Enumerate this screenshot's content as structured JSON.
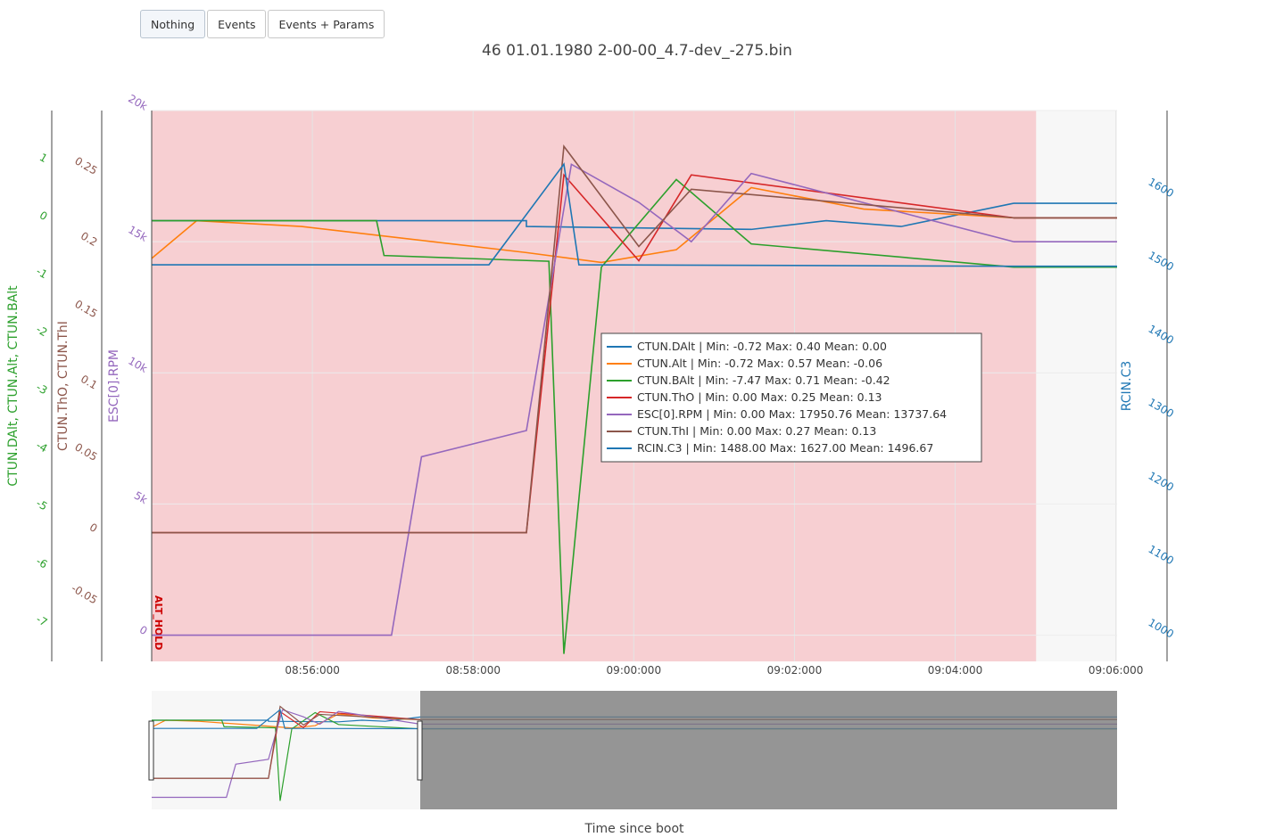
{
  "toolbar": {
    "buttons": [
      {
        "label": "Nothing",
        "active": true
      },
      {
        "label": "Events",
        "active": false
      },
      {
        "label": "Events + Params",
        "active": false
      }
    ]
  },
  "chart_data": {
    "type": "line",
    "title": "46 01.01.1980 2-00-00_4.7-dev_-275.bin",
    "xlabel": "Time since boot",
    "x_ticks": [
      "08:56:000",
      "08:58:000",
      "09:00:000",
      "09:02:000",
      "09:04:000",
      "09:06:000"
    ],
    "x_range": [
      "08:54:020",
      "09:06:880"
    ],
    "mode_band": {
      "label": "ALT_HOLD",
      "start": "08:54:020",
      "end": "09:05:420",
      "color": "#f7cfd2"
    },
    "axes": {
      "y_left_outer": {
        "title": "CTUN.DAlt, CTUN.Alt, CTUN.BAlt",
        "color": "#2ca02c",
        "range": [
          -7.6,
          1.9
        ],
        "ticks": [
          1,
          0,
          -1,
          -2,
          -3,
          -4,
          -5,
          -6,
          -7
        ]
      },
      "y_left_mid": {
        "title": "CTUN.ThO, CTUN.ThI",
        "color": "#8c564b",
        "range": [
          -0.09,
          0.295
        ],
        "ticks": [
          0.25,
          0.2,
          0.15,
          0.1,
          0.05,
          0,
          -0.05
        ]
      },
      "y_left_inner": {
        "title": "ESC[0].RPM",
        "color": "#9467bd",
        "range": [
          -1000,
          20000
        ],
        "ticks": [
          {
            "v": 20000,
            "label": "20k"
          },
          {
            "v": 15000,
            "label": "15k"
          },
          {
            "v": 10000,
            "label": "10k"
          },
          {
            "v": 5000,
            "label": "5k"
          },
          {
            "v": 0,
            "label": "0"
          }
        ]
      },
      "y_right": {
        "title": "RCIN.C3",
        "color": "#1f77b4",
        "range": [
          950,
          1700
        ],
        "ticks": [
          1600,
          1500,
          1400,
          1300,
          1200,
          1100,
          1000
        ]
      }
    },
    "series": [
      {
        "name": "CTUN.DAlt",
        "color": "#1f77b4",
        "axis": "y_left_outer",
        "min": -0.72,
        "max": 0.4,
        "mean": 0.0,
        "legend": "CTUN.DAlt | Min: -0.72     Max: 0.40     Mean: 0.00",
        "points": [
          [
            0,
            0
          ],
          [
            5,
            0
          ],
          [
            5,
            -0.1
          ],
          [
            8,
            -0.15
          ],
          [
            9,
            0
          ],
          [
            10,
            -0.1
          ],
          [
            11.5,
            0.3
          ]
        ]
      },
      {
        "name": "CTUN.Alt",
        "color": "#ff7f0e",
        "axis": "y_left_outer",
        "min": -0.72,
        "max": 0.57,
        "mean": -0.06,
        "legend": "CTUN.Alt | Min: -0.72     Max: 0.57     Mean: -0.06",
        "points": [
          [
            0,
            -0.65
          ],
          [
            0.6,
            0.0
          ],
          [
            2,
            -0.1
          ],
          [
            5,
            -0.55
          ],
          [
            6,
            -0.72
          ],
          [
            7,
            -0.5
          ],
          [
            8,
            0.57
          ],
          [
            9.5,
            0.2
          ],
          [
            11.5,
            0.05
          ]
        ]
      },
      {
        "name": "CTUN.BAlt",
        "color": "#2ca02c",
        "axis": "y_left_outer",
        "min": -7.47,
        "max": 0.71,
        "mean": -0.42,
        "legend": "CTUN.BAlt | Min: -7.47     Max: 0.71     Mean: -0.42",
        "points": [
          [
            0,
            0
          ],
          [
            3,
            0
          ],
          [
            3.1,
            -0.6
          ],
          [
            5.3,
            -0.7
          ],
          [
            5.5,
            -7.47
          ],
          [
            6,
            -0.8
          ],
          [
            7,
            0.71
          ],
          [
            8,
            -0.4
          ],
          [
            11.5,
            -0.8
          ]
        ]
      },
      {
        "name": "CTUN.ThO",
        "color": "#d62728",
        "axis": "y_left_mid",
        "min": 0.0,
        "max": 0.25,
        "mean": 0.13,
        "legend": "CTUN.ThO | Min: 0.00     Max: 0.25     Mean: 0.13",
        "points": [
          [
            0,
            0
          ],
          [
            5,
            0
          ],
          [
            5.5,
            0.25
          ],
          [
            6.5,
            0.19
          ],
          [
            7.2,
            0.25
          ],
          [
            11.5,
            0.22
          ]
        ]
      },
      {
        "name": "ESC[0].RPM",
        "color": "#9467bd",
        "axis": "y_left_inner",
        "min": 0.0,
        "max": 17950.76,
        "mean": 13737.64,
        "legend": "ESC[0].RPM | Min: 0.00     Max: 17950.76     Mean: 13737.64",
        "points": [
          [
            0,
            0
          ],
          [
            3.2,
            0
          ],
          [
            3.6,
            6800
          ],
          [
            5,
            7800
          ],
          [
            5.6,
            17950
          ],
          [
            6.5,
            16500
          ],
          [
            7.2,
            15000
          ],
          [
            8,
            17600
          ],
          [
            11.5,
            15000
          ]
        ]
      },
      {
        "name": "CTUN.ThI",
        "color": "#8c564b",
        "axis": "y_left_mid",
        "min": 0.0,
        "max": 0.27,
        "mean": 0.13,
        "legend": "CTUN.ThI | Min: 0.00     Max: 0.27     Mean: 0.13",
        "points": [
          [
            0,
            0
          ],
          [
            5,
            0
          ],
          [
            5.5,
            0.27
          ],
          [
            6.5,
            0.2
          ],
          [
            7.2,
            0.24
          ],
          [
            11.5,
            0.22
          ]
        ]
      },
      {
        "name": "RCIN.C3",
        "color": "#1f77b4",
        "axis": "y_right",
        "min": 1488.0,
        "max": 1627.0,
        "mean": 1496.67,
        "legend": "RCIN.C3 | Min: 1488.00     Max: 1627.00     Mean: 1496.67",
        "points": [
          [
            0,
            1490
          ],
          [
            4.5,
            1490
          ],
          [
            5.5,
            1627
          ],
          [
            5.7,
            1490
          ],
          [
            11.5,
            1488
          ]
        ]
      }
    ]
  }
}
